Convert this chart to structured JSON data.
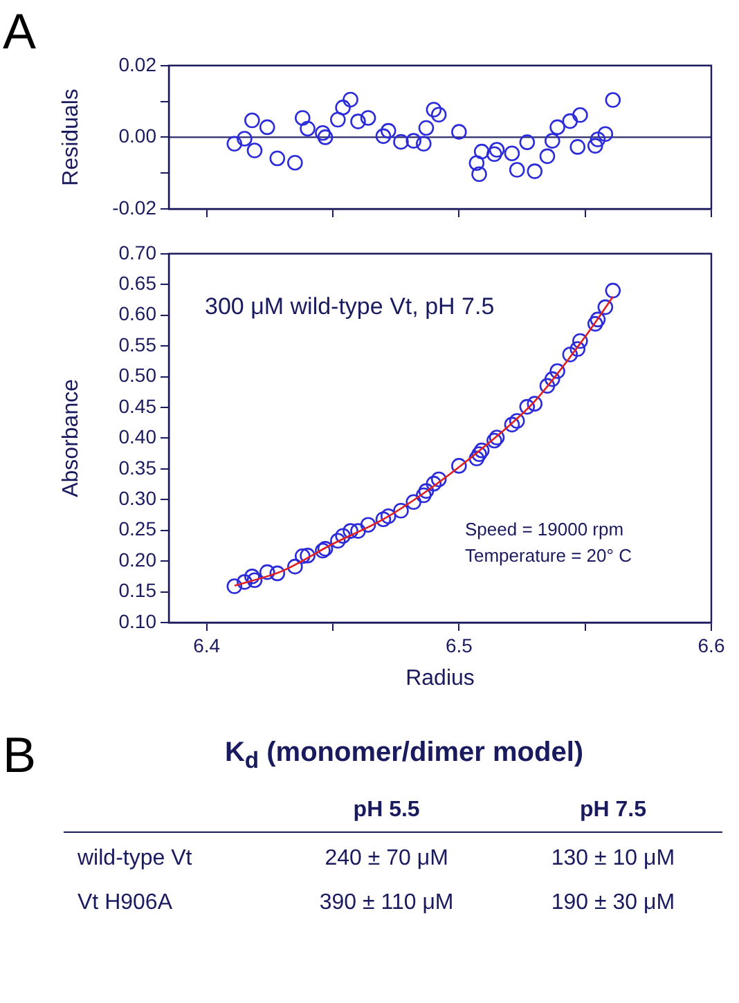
{
  "chart_data": [
    {
      "type": "scatter",
      "ylabel": "Residuals",
      "annotations": [
        "A"
      ],
      "marker": "circle",
      "grid": false,
      "legend": false,
      "tick_labels": "y",
      "xlim": [
        6.385,
        6.6
      ],
      "xticks": [
        {
          "value": 6.4,
          "label": null
        },
        {
          "value": 6.45,
          "label": null
        },
        {
          "value": 6.5,
          "label": null
        },
        {
          "value": 6.55,
          "label": null
        },
        {
          "value": 6.6,
          "label": null
        }
      ],
      "ylim": [
        -0.02,
        0.02
      ],
      "yticks": [
        {
          "value": -0.02,
          "label": "-0.02"
        },
        {
          "value": -0.01,
          "label": null
        },
        {
          "value": 0,
          "label": "0.00"
        },
        {
          "value": 0.01,
          "label": null
        },
        {
          "value": 0.02,
          "label": "0.02"
        }
      ],
      "ref_lines": [
        {
          "axis": "y",
          "value": 0,
          "color": "#2a2a6a"
        }
      ],
      "series": [
        {
          "color": "#2b2bd9",
          "x": [
            6.411,
            6.415,
            6.418,
            6.419,
            6.424,
            6.428,
            6.435,
            6.438,
            6.44,
            6.446,
            6.447,
            6.452,
            6.454,
            6.457,
            6.46,
            6.464,
            6.47,
            6.472,
            6.477,
            6.482,
            6.486,
            6.487,
            6.49,
            6.492,
            6.5,
            6.507,
            6.508,
            6.509,
            6.514,
            6.515,
            6.521,
            6.523,
            6.527,
            6.53,
            6.535,
            6.537,
            6.539,
            6.544,
            6.547,
            6.548,
            6.554,
            6.555,
            6.558,
            6.561
          ],
          "values": [
            -0.0018,
            -0.0004,
            0.0047,
            -0.0037,
            0.0028,
            -0.0059,
            -0.0071,
            0.0054,
            0.0024,
            0.0012,
            0.0,
            0.0049,
            0.0083,
            0.0105,
            0.0044,
            0.0054,
            0.0003,
            0.0018,
            -0.0013,
            -0.001,
            -0.0018,
            0.0026,
            0.0077,
            0.0063,
            0.0015,
            -0.0072,
            -0.0103,
            -0.004,
            -0.0047,
            -0.0035,
            -0.0045,
            -0.0091,
            -0.0014,
            -0.0095,
            -0.0053,
            -0.001,
            0.0028,
            0.0045,
            -0.0027,
            0.0062,
            -0.0024,
            -0.0006,
            0.0009,
            0.0104
          ]
        }
      ]
    },
    {
      "type": "scatter",
      "xlabel": "Radius",
      "ylabel": "Absorbance",
      "annotations": [
        "300 μM wild-type Vt, pH 7.5",
        "Speed =  19000 rpm",
        "Temperature  = 20° C"
      ],
      "marker": "circle",
      "grid": false,
      "legend": false,
      "xlim": [
        6.385,
        6.6
      ],
      "xticks": [
        {
          "value": 6.4,
          "label": "6.4"
        },
        {
          "value": 6.45,
          "label": null
        },
        {
          "value": 6.5,
          "label": "6.5"
        },
        {
          "value": 6.55,
          "label": null
        },
        {
          "value": 6.6,
          "label": "6.6"
        }
      ],
      "ylim": [
        0.1,
        0.7
      ],
      "yticks": [
        {
          "value": 0.1,
          "label": "0.10"
        },
        {
          "value": 0.15,
          "label": "0.15"
        },
        {
          "value": 0.2,
          "label": "0.20"
        },
        {
          "value": 0.25,
          "label": "0.25"
        },
        {
          "value": 0.3,
          "label": "0.30"
        },
        {
          "value": 0.35,
          "label": "0.35"
        },
        {
          "value": 0.4,
          "label": "0.40"
        },
        {
          "value": 0.45,
          "label": "0.45"
        },
        {
          "value": 0.5,
          "label": "0.50"
        },
        {
          "value": 0.55,
          "label": "0.55"
        },
        {
          "value": 0.6,
          "label": "0.60"
        },
        {
          "value": 0.65,
          "label": "0.65"
        },
        {
          "value": 0.7,
          "label": "0.70"
        }
      ],
      "series": [
        {
          "color": "#2b2bd9",
          "x": [
            6.411,
            6.415,
            6.418,
            6.419,
            6.424,
            6.428,
            6.435,
            6.438,
            6.44,
            6.446,
            6.447,
            6.452,
            6.454,
            6.457,
            6.46,
            6.464,
            6.47,
            6.472,
            6.477,
            6.482,
            6.486,
            6.487,
            6.49,
            6.492,
            6.5,
            6.507,
            6.508,
            6.509,
            6.514,
            6.515,
            6.521,
            6.523,
            6.527,
            6.53,
            6.535,
            6.537,
            6.539,
            6.544,
            6.547,
            6.548,
            6.554,
            6.555,
            6.558,
            6.561
          ],
          "values": [
            0.159,
            0.166,
            0.175,
            0.169,
            0.182,
            0.18,
            0.191,
            0.208,
            0.209,
            0.217,
            0.22,
            0.233,
            0.241,
            0.249,
            0.249,
            0.259,
            0.268,
            0.273,
            0.282,
            0.296,
            0.307,
            0.314,
            0.326,
            0.333,
            0.355,
            0.367,
            0.374,
            0.38,
            0.396,
            0.401,
            0.422,
            0.428,
            0.451,
            0.456,
            0.485,
            0.496,
            0.509,
            0.536,
            0.545,
            0.558,
            0.586,
            0.593,
            0.613,
            0.64
          ]
        },
        {
          "type": "line",
          "color": "#e02020",
          "marker": "none",
          "x": [
            6.411,
            6.43,
            6.45,
            6.47,
            6.49,
            6.51,
            6.53,
            6.55,
            6.561
          ],
          "values": [
            0.16,
            0.184,
            0.228,
            0.268,
            0.322,
            0.386,
            0.46,
            0.565,
            0.63
          ]
        }
      ]
    },
    {
      "type": "other",
      "title": "K$_{d}$ (monomer/dimer model)",
      "annotations": [
        "B"
      ],
      "categories": [
        "pH 5.5",
        "pH 7.5"
      ],
      "y_categories": [
        "wild-type Vt",
        "Vt H906A"
      ],
      "cell_labels": [
        [
          "240 ± 70 μM",
          "130 ± 10 μM"
        ],
        [
          "390 ± 110 μM",
          "190 ± 30 μM"
        ]
      ]
    }
  ]
}
